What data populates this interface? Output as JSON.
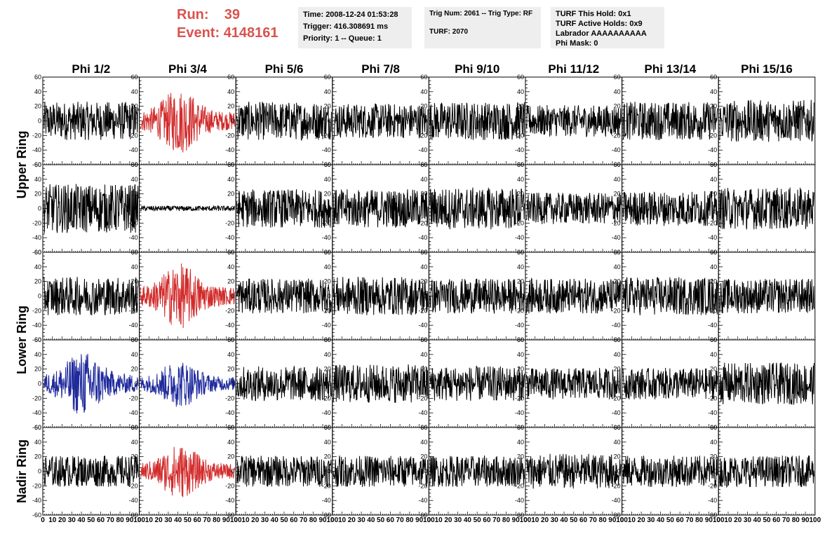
{
  "header": {
    "run_label": "Run:",
    "run_value": "39",
    "event_label": "Event:",
    "event_value": "4148161",
    "time": "Time: 2008-12-24 01:53:28",
    "trigger": "Trigger: 416.308691 ms",
    "priority": "Priority: 1 -- Queue: 1",
    "trig_num": "Trig Num: 2061 -- Trig Type: RF",
    "turf": "TURF: 2070",
    "turf_this_hold": "TURF This Hold: 0x1",
    "turf_active_holds": "TURF Active Holds: 0x9",
    "labrador": "Labrador AAAAAAAAAA",
    "phi_mask": "Phi Mask: 0"
  },
  "chart_data": {
    "type": "line",
    "columns": [
      "Phi 1/2",
      "Phi 3/4",
      "Phi 5/6",
      "Phi 7/8",
      "Phi 9/10",
      "Phi 11/12",
      "Phi 13/14",
      "Phi 15/16"
    ],
    "ring_labels": [
      {
        "label": "Upper Ring",
        "rows": [
          0,
          1
        ]
      },
      {
        "label": "Lower Ring",
        "rows": [
          2,
          3
        ]
      },
      {
        "label": "Nadir Ring",
        "rows": [
          4
        ]
      }
    ],
    "xlim": [
      0,
      100
    ],
    "ylim": [
      -60,
      60
    ],
    "x_ticks": [
      "0",
      "10",
      "20",
      "30",
      "40",
      "50",
      "60",
      "70",
      "80",
      "90",
      "100"
    ],
    "y_ticks": [
      "60",
      "40",
      "20",
      "0",
      "-20",
      "-40",
      "-60"
    ],
    "colors": {
      "normal": "#000000",
      "red": "#d22b2b",
      "blue": "#1f2a9c"
    },
    "panels": [
      [
        "black",
        "red",
        "black",
        "black",
        "black",
        "black",
        "black",
        "black"
      ],
      [
        "black",
        "black",
        "black",
        "black",
        "black",
        "black",
        "black",
        "black"
      ],
      [
        "black",
        "red",
        "black",
        "black",
        "black",
        "black",
        "black",
        "black"
      ],
      [
        "blue",
        "blue",
        "black",
        "black",
        "black",
        "black",
        "black",
        "black"
      ],
      [
        "black",
        "red",
        "black",
        "black",
        "black",
        "black",
        "black",
        "black"
      ]
    ],
    "amplitude": [
      [
        22,
        30,
        22,
        20,
        22,
        18,
        22,
        24
      ],
      [
        28,
        3,
        22,
        22,
        24,
        18,
        20,
        24
      ],
      [
        22,
        30,
        20,
        22,
        20,
        20,
        22,
        20
      ],
      [
        30,
        22,
        20,
        22,
        20,
        18,
        18,
        24
      ],
      [
        18,
        25,
        18,
        18,
        18,
        20,
        18,
        18
      ]
    ]
  }
}
